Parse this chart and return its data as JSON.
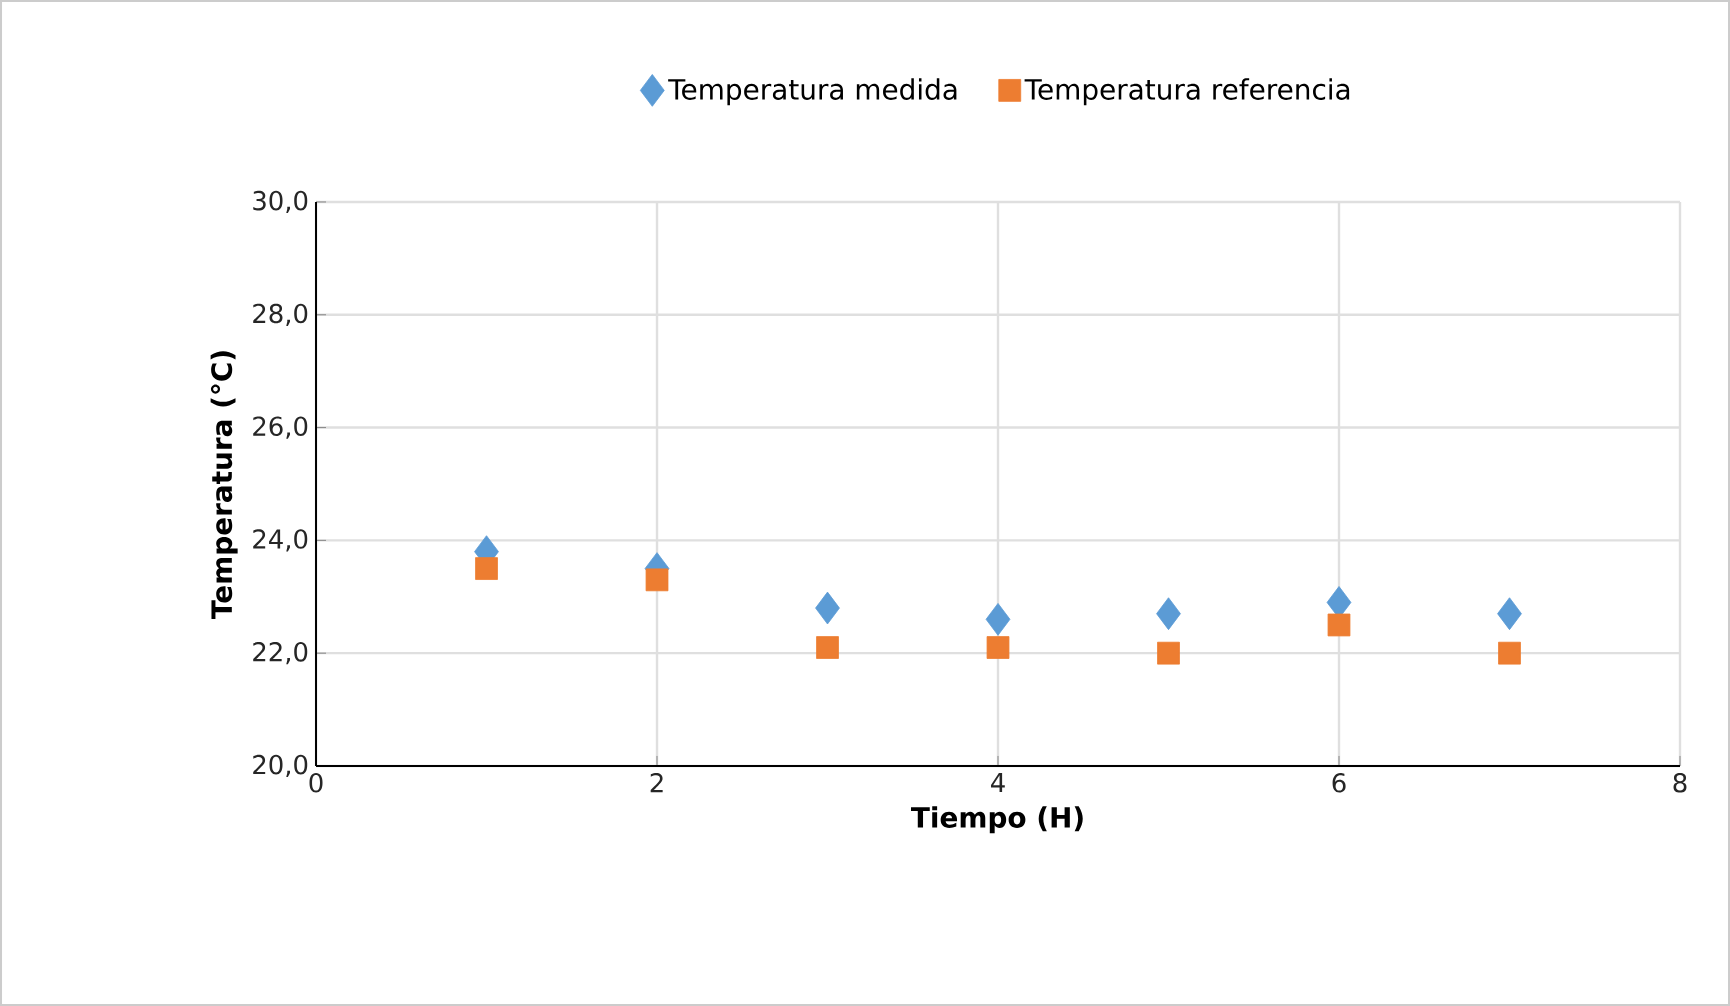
{
  "chart_data": {
    "type": "scatter",
    "xlabel": "Tiempo (H)",
    "ylabel": "Temperatura (°C)",
    "series": [
      {
        "name": "Temperatura medida",
        "color": "#5b9bd5",
        "marker": "diamond",
        "x": [
          1,
          2,
          3,
          4,
          5,
          6,
          7
        ],
        "values": [
          23.8,
          23.5,
          22.8,
          22.6,
          22.7,
          22.9,
          22.7
        ]
      },
      {
        "name": "Temperatura referencia",
        "color": "#ed7d31",
        "marker": "square",
        "x": [
          1,
          2,
          3,
          4,
          5,
          6,
          7
        ],
        "values": [
          23.5,
          23.3,
          22.1,
          22.1,
          22.0,
          22.5,
          22.0
        ]
      }
    ],
    "xlim": [
      0,
      8
    ],
    "xticks": [
      0,
      2,
      4,
      6,
      8
    ],
    "ylim": [
      20,
      30
    ],
    "yticks": [
      {
        "value": 20,
        "label": "20,0"
      },
      {
        "value": 22,
        "label": "22,0"
      },
      {
        "value": 24,
        "label": "24,0"
      },
      {
        "value": 26,
        "label": "26,0"
      },
      {
        "value": 28,
        "label": "28,0"
      },
      {
        "value": 30,
        "label": "30,0"
      }
    ],
    "grid": true,
    "legend": "top"
  }
}
